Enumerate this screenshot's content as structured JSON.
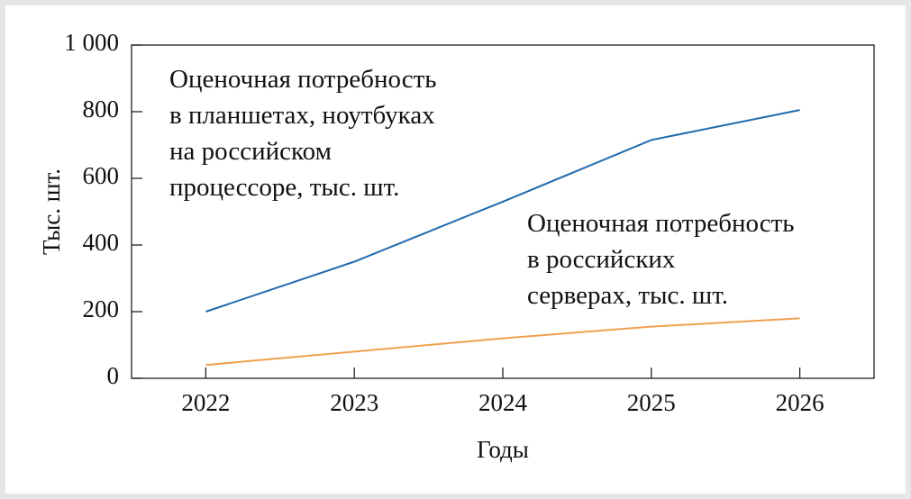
{
  "chart_data": {
    "type": "line",
    "x_label": "Годы",
    "y_label": "Тыс. шт.",
    "categories": [
      "2022",
      "2023",
      "2024",
      "2025",
      "2026"
    ],
    "series": [
      {
        "name": "Оценочная потребность\nв планшетах, ноутбуках\nна российском\nпроцессоре, тыс. шт.",
        "color": "#1f6aad",
        "values": [
          200,
          350,
          530,
          715,
          805
        ]
      },
      {
        "name": "Оценочная потребность\nв российских\nсерверах, тыс. шт.",
        "color": "#f0a050",
        "values": [
          40,
          80,
          120,
          155,
          180
        ]
      }
    ],
    "ylim": [
      0,
      1000
    ],
    "yticks": [
      0,
      200,
      400,
      600,
      800,
      {
        "value": 1000,
        "label": "1 000"
      }
    ],
    "grid": false
  }
}
